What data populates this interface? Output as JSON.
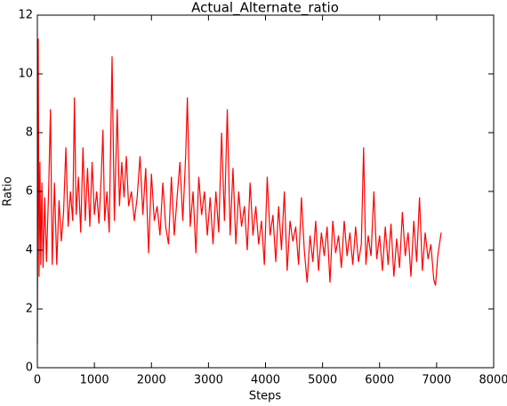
{
  "chart_data": {
    "type": "line",
    "title": "Actual_Alternate_ratio",
    "x_label": "Steps",
    "y_label": "Ratio",
    "x": [
      0,
      15,
      30,
      45,
      60,
      80,
      100,
      130,
      160,
      200,
      230,
      260,
      300,
      340,
      380,
      420,
      460,
      500,
      540,
      580,
      620,
      650,
      680,
      720,
      760,
      800,
      840,
      880,
      920,
      960,
      1000,
      1040,
      1080,
      1120,
      1150,
      1180,
      1220,
      1260,
      1310,
      1350,
      1400,
      1440,
      1480,
      1520,
      1560,
      1600,
      1650,
      1700,
      1750,
      1800,
      1850,
      1900,
      1950,
      2000,
      2050,
      2100,
      2150,
      2200,
      2250,
      2300,
      2350,
      2400,
      2450,
      2500,
      2550,
      2600,
      2630,
      2680,
      2730,
      2780,
      2830,
      2880,
      2930,
      2980,
      3030,
      3080,
      3130,
      3180,
      3230,
      3280,
      3330,
      3380,
      3430,
      3480,
      3530,
      3580,
      3630,
      3680,
      3730,
      3780,
      3830,
      3880,
      3930,
      3980,
      4030,
      4080,
      4130,
      4180,
      4230,
      4280,
      4330,
      4380,
      4430,
      4480,
      4530,
      4580,
      4630,
      4680,
      4730,
      4780,
      4830,
      4880,
      4930,
      4980,
      5030,
      5080,
      5130,
      5180,
      5230,
      5280,
      5330,
      5380,
      5430,
      5480,
      5530,
      5580,
      5630,
      5680,
      5720,
      5760,
      5800,
      5850,
      5900,
      5950,
      6000,
      6050,
      6100,
      6150,
      6200,
      6250,
      6300,
      6350,
      6400,
      6450,
      6500,
      6550,
      6600,
      6650,
      6700,
      6750,
      6800,
      6850,
      6900,
      6950,
      6980,
      7020,
      7080
    ],
    "series": [
      {
        "color": "#ff0000",
        "values": [
          0.8,
          11.2,
          3.1,
          7.0,
          3.5,
          6.3,
          3.4,
          5.8,
          3.6,
          6.2,
          8.8,
          3.5,
          6.3,
          3.5,
          5.7,
          4.3,
          5.3,
          7.5,
          4.8,
          6.0,
          5.0,
          9.2,
          5.2,
          6.5,
          4.6,
          7.5,
          5.0,
          6.8,
          4.8,
          7.0,
          5.2,
          6.0,
          4.9,
          6.5,
          8.1,
          5.0,
          6.0,
          4.6,
          10.6,
          5.0,
          8.8,
          5.5,
          7.0,
          5.8,
          7.2,
          5.5,
          6.0,
          5.0,
          5.8,
          7.2,
          5.2,
          6.8,
          3.9,
          6.6,
          5.0,
          5.5,
          4.5,
          6.3,
          4.8,
          4.2,
          6.5,
          4.5,
          5.8,
          7.0,
          5.0,
          7.2,
          9.2,
          4.8,
          6.0,
          3.9,
          6.5,
          5.2,
          6.0,
          4.5,
          5.8,
          4.2,
          6.0,
          4.6,
          8.0,
          5.0,
          8.8,
          4.5,
          6.8,
          4.2,
          6.0,
          4.8,
          5.5,
          4.0,
          6.3,
          4.5,
          5.5,
          4.2,
          5.0,
          3.5,
          6.5,
          4.5,
          5.2,
          3.6,
          5.5,
          4.0,
          6.0,
          3.3,
          5.0,
          4.3,
          4.8,
          3.5,
          5.8,
          4.0,
          2.9,
          4.5,
          3.6,
          5.0,
          3.3,
          4.6,
          3.8,
          4.8,
          2.9,
          5.0,
          3.9,
          4.5,
          3.4,
          5.0,
          3.8,
          4.6,
          3.5,
          4.8,
          3.6,
          4.2,
          7.5,
          3.5,
          4.5,
          3.8,
          6.0,
          3.7,
          4.5,
          3.3,
          4.8,
          3.5,
          4.9,
          3.1,
          4.4,
          3.4,
          5.3,
          3.8,
          4.6,
          3.1,
          5.0,
          3.6,
          5.8,
          3.3,
          4.6,
          3.7,
          4.2,
          3.0,
          2.8,
          3.8,
          4.6
        ]
      }
    ],
    "xlim": [
      0,
      8000
    ],
    "xticks": [
      0,
      1000,
      2000,
      3000,
      4000,
      5000,
      6000,
      7000,
      8000
    ],
    "ylim": [
      0,
      12
    ],
    "yticks": [
      0,
      2,
      4,
      6,
      8,
      10,
      12
    ],
    "grid": false
  }
}
